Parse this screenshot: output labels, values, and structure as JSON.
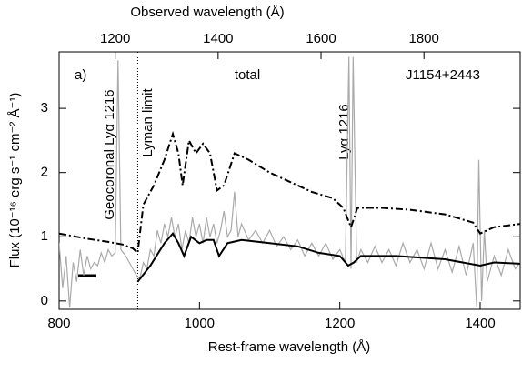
{
  "chart_data": {
    "type": "line",
    "xlabel": "Rest-frame wavelength (Å)",
    "x2label": "Observed wavelength (Å)",
    "ylabel": "Flux (10⁻¹⁶ erg s⁻¹ cm⁻² Å⁻¹)",
    "xlim": [
      800,
      1457
    ],
    "xticks": [
      800,
      1000,
      1200,
      1400
    ],
    "x2lim": [
      1091,
      1987
    ],
    "x2ticks": [
      1200,
      1400,
      1600,
      1800
    ],
    "ylim": [
      -0.13,
      3.88
    ],
    "yticks": [
      0,
      1,
      2,
      3
    ],
    "vlines": [
      912
    ],
    "annotations": [
      "a)",
      "total",
      "J1154+2443",
      "Geocoronal Lyα 1216",
      "Lyman limit",
      "Lyα 1216"
    ],
    "series": [
      {
        "color": "#aaaaaa",
        "style": "solid",
        "x": [
          800,
          805,
          810,
          815,
          820,
          825,
          830,
          835,
          840,
          845,
          850,
          855,
          860,
          865,
          870,
          875,
          880,
          884,
          888,
          895,
          900,
          905,
          910,
          915,
          920,
          925,
          930,
          935,
          940,
          945,
          950,
          955,
          960,
          965,
          970,
          975,
          980,
          985,
          990,
          995,
          1000,
          1005,
          1010,
          1015,
          1020,
          1025,
          1030,
          1035,
          1040,
          1045,
          1050,
          1055,
          1060,
          1070,
          1080,
          1090,
          1100,
          1110,
          1120,
          1130,
          1140,
          1150,
          1160,
          1170,
          1180,
          1190,
          1200,
          1208,
          1213,
          1216,
          1219,
          1224,
          1230,
          1240,
          1250,
          1260,
          1270,
          1280,
          1290,
          1300,
          1310,
          1320,
          1330,
          1340,
          1350,
          1360,
          1370,
          1380,
          1390,
          1395,
          1398,
          1402,
          1406,
          1410,
          1420,
          1430,
          1440,
          1450,
          1457
        ],
        "values": [
          0.9,
          0.2,
          0.7,
          -0.1,
          0.6,
          0.3,
          0.8,
          0.4,
          0.7,
          0.5,
          0.6,
          0.55,
          0.75,
          0.6,
          0.8,
          0.7,
          0.75,
          3.75,
          0.8,
          0.7,
          0.6,
          0.5,
          0.4,
          0.35,
          0.6,
          0.5,
          0.8,
          0.7,
          1.1,
          0.9,
          1.2,
          1.0,
          1.3,
          1.0,
          1.2,
          0.8,
          1.1,
          0.9,
          1.3,
          1.0,
          1.2,
          0.9,
          1.3,
          1.0,
          1.2,
          0.9,
          1.1,
          1.4,
          1.0,
          1.1,
          1.7,
          1.0,
          1.2,
          0.95,
          1.1,
          0.9,
          1.1,
          0.85,
          1.0,
          0.8,
          0.95,
          0.7,
          0.9,
          0.7,
          0.9,
          0.65,
          0.8,
          0.6,
          3.8,
          0.5,
          3.8,
          0.6,
          0.8,
          0.6,
          0.85,
          0.6,
          0.8,
          0.55,
          0.9,
          0.6,
          0.8,
          0.5,
          0.9,
          0.5,
          0.8,
          0.45,
          0.85,
          0.4,
          0.9,
          -0.1,
          2.2,
          0.0,
          1.1,
          0.3,
          0.7,
          0.4,
          0.8,
          0.5,
          0.6
        ]
      },
      {
        "color": "#000000",
        "style": "dashdot",
        "x": [
          800,
          840,
          870,
          890,
          905,
          912,
          920,
          935,
          950,
          962,
          970,
          976,
          985,
          995,
          1005,
          1015,
          1025,
          1035,
          1050,
          1070,
          1100,
          1130,
          1160,
          1190,
          1205,
          1216,
          1225,
          1260,
          1300,
          1350,
          1390,
          1400,
          1420,
          1457
        ],
        "values": [
          1.05,
          0.97,
          0.92,
          0.88,
          0.82,
          0.75,
          1.5,
          1.8,
          2.2,
          2.6,
          2.3,
          1.8,
          2.5,
          2.3,
          2.45,
          2.3,
          1.72,
          1.8,
          2.3,
          2.2,
          2.0,
          1.85,
          1.7,
          1.6,
          1.45,
          1.15,
          1.45,
          1.45,
          1.42,
          1.35,
          1.22,
          1.05,
          1.15,
          1.2
        ]
      },
      {
        "color": "#000000",
        "style": "solid",
        "x": [
          912,
          930,
          950,
          962,
          970,
          978,
          988,
          1000,
          1010,
          1020,
          1028,
          1040,
          1060,
          1100,
          1140,
          1170,
          1200,
          1212,
          1220,
          1230,
          1280,
          1350,
          1400,
          1420,
          1457
        ],
        "values": [
          0.3,
          0.55,
          0.9,
          1.05,
          0.9,
          0.7,
          1.0,
          0.9,
          0.95,
          0.95,
          0.7,
          0.9,
          0.95,
          0.9,
          0.85,
          0.75,
          0.7,
          0.55,
          0.6,
          0.7,
          0.7,
          0.65,
          0.55,
          0.6,
          0.58
        ]
      }
    ]
  }
}
